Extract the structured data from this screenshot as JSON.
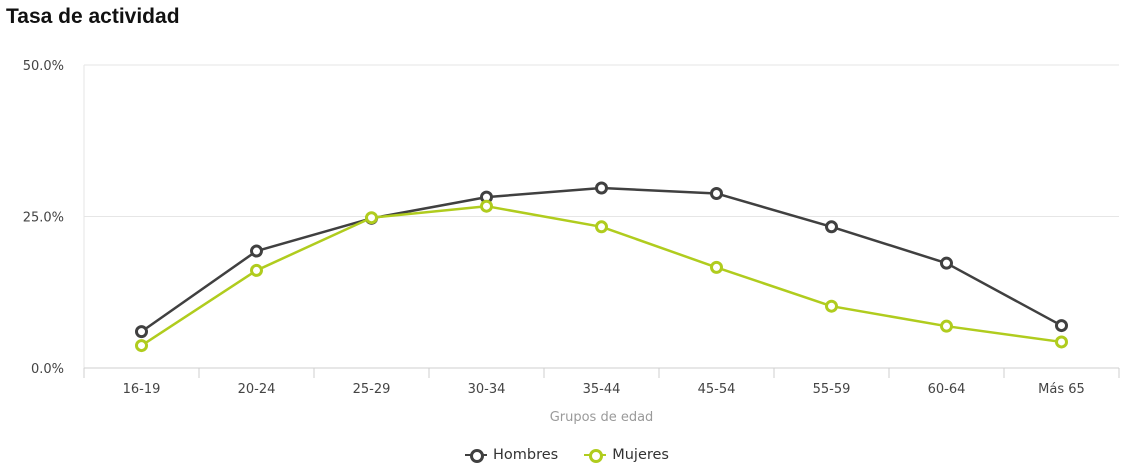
{
  "chart_data": {
    "type": "line",
    "title": "Tasa de actividad",
    "xlabel": "Grupos de edad",
    "ylabel": "",
    "categories": [
      "16-19",
      "20-24",
      "25-29",
      "30-34",
      "35-44",
      "45-54",
      "55-59",
      "60-64",
      "Más 65"
    ],
    "ylim": [
      0,
      50
    ],
    "yticks": [
      "0.0%",
      "25.0%",
      "50.0%"
    ],
    "ytick_values": [
      0,
      25,
      50
    ],
    "grid": true,
    "legend_position": "bottom-center",
    "series": [
      {
        "name": "Hombres",
        "color": "#404040",
        "values": [
          6.0,
          19.3,
          24.7,
          28.2,
          29.7,
          28.8,
          23.3,
          17.3,
          7.0
        ]
      },
      {
        "name": "Mujeres",
        "color": "#b0cc1e",
        "values": [
          3.7,
          16.1,
          24.8,
          26.7,
          23.3,
          16.6,
          10.2,
          6.9,
          4.3
        ]
      }
    ]
  }
}
